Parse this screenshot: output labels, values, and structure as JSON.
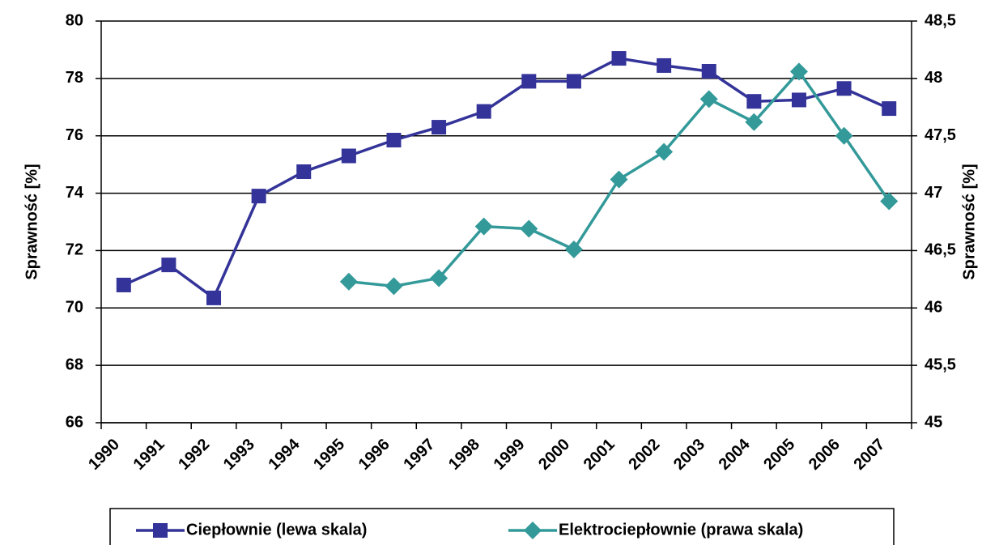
{
  "chart_data": {
    "type": "line",
    "y_label": "Sprawność [%]",
    "y2_label": "Sprawność [%]",
    "categories": [
      "1990",
      "1991",
      "1992",
      "1993",
      "1994",
      "1995",
      "1996",
      "1997",
      "1998",
      "1999",
      "2000",
      "2001",
      "2002",
      "2003",
      "2004",
      "2005",
      "2006",
      "2007"
    ],
    "series": [
      {
        "name": "Ciepłownie (lewa skala)",
        "color": "#333399",
        "marker": "square",
        "values": [
          70.8,
          71.5,
          70.35,
          73.9,
          74.75,
          75.3,
          75.85,
          76.3,
          76.85,
          77.9,
          77.9,
          78.7,
          78.45,
          78.25,
          77.2,
          77.25,
          77.65,
          76.95
        ]
      },
      {
        "name": "Elektrociepłownie (prawa skala)",
        "color": "#339999",
        "marker": "diamond",
        "axis": "y2",
        "values": [
          null,
          null,
          null,
          null,
          null,
          46.23,
          46.19,
          46.26,
          46.71,
          46.69,
          46.51,
          47.12,
          47.36,
          47.82,
          47.62,
          48.06,
          47.5,
          46.93
        ]
      }
    ],
    "ylim": [
      66,
      80
    ],
    "yticks": [
      66,
      68,
      70,
      72,
      74,
      76,
      78,
      80
    ],
    "y2lim": [
      45,
      48.5
    ],
    "y2ticks": [
      45,
      {
        "value": 45.5,
        "label": "45,5"
      },
      46,
      {
        "value": 46.5,
        "label": "46,5"
      },
      47,
      {
        "value": 47.5,
        "label": "47,5"
      },
      48,
      {
        "value": 48.5,
        "label": "48,5"
      }
    ],
    "grid": true,
    "legend": "bottom"
  }
}
